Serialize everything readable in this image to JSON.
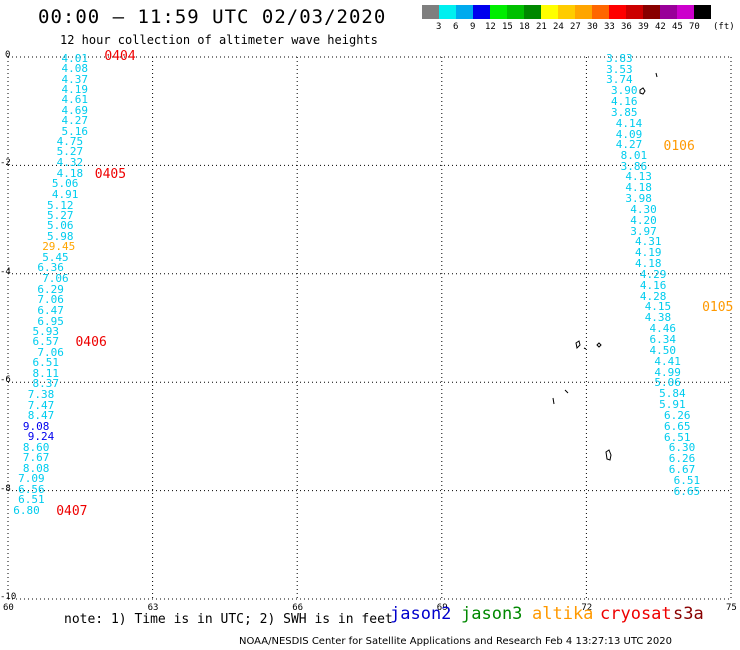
{
  "header": {
    "title": "00:00 – 11:59 UTC 02/03/2020",
    "subtitle": "12 hour collection of altimeter wave heights"
  },
  "colorbar": {
    "swatches": [
      "#7f7f7f",
      "#00f0f0",
      "#00aaee",
      "#0000ee",
      "#00ee00",
      "#00c000",
      "#008800",
      "#ffff00",
      "#ffcc00",
      "#ffa500",
      "#ff6600",
      "#ff0000",
      "#cc0000",
      "#880000",
      "#990099",
      "#cc00cc",
      "#000000"
    ],
    "labels": [
      "3",
      "6",
      "9",
      "12",
      "15",
      "18",
      "21",
      "24",
      "27",
      "30",
      "33",
      "36",
      "39",
      "42",
      "45",
      "70"
    ],
    "unit": "(ft)"
  },
  "map": {
    "x_range": [
      60,
      75
    ],
    "y_range": [
      -10,
      0
    ],
    "x_ticks": [
      "60",
      "63",
      "66",
      "69",
      "72",
      "75"
    ],
    "y_ticks": [
      "0",
      "-2",
      "-4",
      "-6",
      "-8",
      "-10"
    ],
    "tracks": [
      {
        "id": "track-1",
        "color": "#00ccee",
        "points": [
          [
            61.4,
            -0.05,
            "4.01"
          ],
          [
            61.4,
            -0.24,
            "4.08"
          ],
          [
            61.4,
            -0.44,
            "4.37"
          ],
          [
            61.4,
            -0.63,
            "4.19"
          ],
          [
            61.4,
            -0.82,
            "4.61"
          ],
          [
            61.4,
            -1.01,
            "4.69"
          ],
          [
            61.4,
            -1.2,
            "4.27"
          ],
          [
            61.4,
            -1.4,
            "5.16"
          ],
          [
            61.3,
            -1.59,
            "4.75"
          ],
          [
            61.3,
            -1.78,
            "5.27"
          ],
          [
            61.3,
            -1.98,
            "4.32"
          ],
          [
            61.3,
            -2.17,
            "4.18"
          ],
          [
            61.2,
            -2.37,
            "5.06"
          ],
          [
            61.2,
            -2.56,
            "4.91"
          ],
          [
            61.1,
            -2.76,
            "5.12"
          ],
          [
            61.1,
            -2.95,
            "5.27"
          ],
          [
            61.1,
            -3.14,
            "5.06"
          ],
          [
            61.1,
            -3.34,
            "5.98"
          ],
          [
            61.0,
            -3.53,
            "29.45"
          ],
          [
            61.0,
            -3.73,
            "5.45"
          ],
          [
            60.9,
            -3.92,
            "6.36"
          ],
          [
            61.0,
            -4.12,
            "7.06"
          ],
          [
            60.9,
            -4.31,
            "6.29"
          ],
          [
            60.9,
            -4.51,
            "7.06"
          ],
          [
            60.9,
            -4.7,
            "6.47"
          ],
          [
            60.9,
            -4.9,
            "6.95"
          ],
          [
            60.8,
            -5.09,
            "5.93"
          ],
          [
            60.8,
            -5.28,
            "6.57"
          ],
          [
            60.9,
            -5.48,
            "7.06"
          ],
          [
            60.8,
            -5.67,
            "6.51"
          ],
          [
            60.8,
            -5.87,
            "8.11"
          ],
          [
            60.8,
            -6.06,
            "8.37"
          ],
          [
            60.7,
            -6.26,
            "7.38"
          ],
          [
            60.7,
            -6.45,
            "7.47"
          ],
          [
            60.7,
            -6.65,
            "8.47"
          ],
          [
            60.6,
            -6.84,
            "9.08"
          ],
          [
            60.7,
            -7.03,
            "9.24"
          ],
          [
            60.6,
            -7.23,
            "8.60"
          ],
          [
            60.6,
            -7.42,
            "7.67"
          ],
          [
            60.6,
            -7.62,
            "8.08"
          ],
          [
            60.5,
            -7.81,
            "7.09"
          ],
          [
            60.5,
            -8.01,
            "6.56"
          ],
          [
            60.5,
            -8.2,
            "6.51"
          ],
          [
            60.4,
            -8.39,
            "6.80"
          ]
        ],
        "colors": {
          "29.45": "#ffa500",
          "9.08": "#0000ee",
          "9.24": "#0000ee"
        }
      },
      {
        "id": "track-2",
        "color": "#00ccee",
        "points": [
          [
            72.7,
            -0.05,
            "3.83"
          ],
          [
            72.7,
            -0.25,
            "3.53"
          ],
          [
            72.7,
            -0.45,
            "3.74"
          ],
          [
            72.8,
            -0.65,
            "3.90"
          ],
          [
            72.8,
            -0.85,
            "4.16"
          ],
          [
            72.8,
            -1.05,
            "3.85"
          ],
          [
            72.9,
            -1.25,
            "4.14"
          ],
          [
            72.9,
            -1.45,
            "4.09"
          ],
          [
            72.9,
            -1.65,
            "4.27"
          ],
          [
            73.0,
            -1.85,
            "8.01"
          ],
          [
            73.0,
            -2.04,
            "3.86"
          ],
          [
            73.1,
            -2.24,
            "4.13"
          ],
          [
            73.1,
            -2.44,
            "4.18"
          ],
          [
            73.1,
            -2.64,
            "3.98"
          ],
          [
            73.2,
            -2.84,
            "4.30"
          ],
          [
            73.2,
            -3.04,
            "4.20"
          ],
          [
            73.2,
            -3.24,
            "3.97"
          ],
          [
            73.3,
            -3.44,
            "4.31"
          ],
          [
            73.3,
            -3.64,
            "4.19"
          ],
          [
            73.3,
            -3.84,
            "4.18"
          ],
          [
            73.4,
            -4.04,
            "4.29"
          ],
          [
            73.4,
            -4.24,
            "4.16"
          ],
          [
            73.4,
            -4.44,
            "4.28"
          ],
          [
            73.5,
            -4.64,
            "4.15"
          ],
          [
            73.5,
            -4.84,
            "4.38"
          ],
          [
            73.6,
            -5.04,
            "4.46"
          ],
          [
            73.6,
            -5.24,
            "6.34"
          ],
          [
            73.6,
            -5.44,
            "4.50"
          ],
          [
            73.7,
            -5.64,
            "4.41"
          ],
          [
            73.7,
            -5.84,
            "4.99"
          ],
          [
            73.7,
            -6.04,
            "5.06"
          ],
          [
            73.8,
            -6.24,
            "5.84"
          ],
          [
            73.8,
            -6.44,
            "5.91"
          ],
          [
            73.9,
            -6.64,
            "6.26"
          ],
          [
            73.9,
            -6.84,
            "6.65"
          ],
          [
            73.9,
            -7.04,
            "6.51"
          ],
          [
            74.0,
            -7.24,
            "6.30"
          ],
          [
            74.0,
            -7.44,
            "6.26"
          ],
          [
            74.0,
            -7.64,
            "6.67"
          ],
          [
            74.1,
            -7.84,
            "6.51"
          ],
          [
            74.1,
            -8.04,
            "6.65"
          ]
        ],
        "colors": {}
      }
    ],
    "pass_labels": [
      {
        "text": "0404",
        "color": "#ee0000",
        "x": 62.0,
        "y": 0.0
      },
      {
        "text": "0405",
        "color": "#ee0000",
        "x": 61.8,
        "y": -2.17
      },
      {
        "text": "0406",
        "color": "#ee0000",
        "x": 61.4,
        "y": -5.28
      },
      {
        "text": "0407",
        "color": "#ee0000",
        "x": 61.0,
        "y": -8.39
      },
      {
        "text": "0106",
        "color": "#ff9900",
        "x": 73.6,
        "y": -1.66
      },
      {
        "text": "0105",
        "color": "#ff9900",
        "x": 74.4,
        "y": -4.64
      }
    ]
  },
  "footer": {
    "note": "note: 1) Time is in UTC; 2) SWH is in feet",
    "satellites": [
      {
        "name": "jason2",
        "color": "#0000cc"
      },
      {
        "name": "jason3",
        "color": "#008800"
      },
      {
        "name": "altika",
        "color": "#ff9900"
      },
      {
        "name": "cryosat",
        "color": "#ee0000"
      },
      {
        "name": "s3a",
        "color": "#880000"
      }
    ],
    "credit": "NOAA/NESDIS Center for Satellite Applications and Research    Feb  4 13:27:13 UTC 2020"
  }
}
